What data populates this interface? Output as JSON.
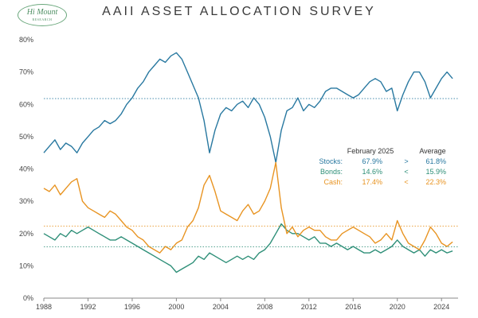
{
  "header": {
    "title": "AAII ASSET ALLOCATION SURVEY",
    "logo_main": "Hi Mount",
    "logo_sub": "RESEARCH"
  },
  "colors": {
    "stocks": "#2878a0",
    "bonds": "#2e8f78",
    "cash": "#e89422",
    "axis": "#888888"
  },
  "chart_data": {
    "type": "line",
    "title": "AAII ASSET ALLOCATION SURVEY",
    "xlabel": "",
    "ylabel": "",
    "xlim": [
      1988,
      2025.5
    ],
    "ylim": [
      0,
      80
    ],
    "x_ticks": [
      "1988",
      "1992",
      "1996",
      "2000",
      "2004",
      "2008",
      "2012",
      "2016",
      "2020",
      "2024"
    ],
    "y_ticks": [
      "0%",
      "10%",
      "20%",
      "30%",
      "40%",
      "50%",
      "60%",
      "70%",
      "80%"
    ],
    "grid": false,
    "series": [
      {
        "name": "Stocks",
        "color": "#2878a0",
        "average": 61.8,
        "points": [
          [
            1988,
            45
          ],
          [
            1988.5,
            47
          ],
          [
            1989,
            49
          ],
          [
            1989.5,
            46
          ],
          [
            1990,
            48
          ],
          [
            1990.5,
            47
          ],
          [
            1991,
            45
          ],
          [
            1991.5,
            48
          ],
          [
            1992,
            50
          ],
          [
            1992.5,
            52
          ],
          [
            1993,
            53
          ],
          [
            1993.5,
            55
          ],
          [
            1994,
            54
          ],
          [
            1994.5,
            55
          ],
          [
            1995,
            57
          ],
          [
            1995.5,
            60
          ],
          [
            1996,
            62
          ],
          [
            1996.5,
            65
          ],
          [
            1997,
            67
          ],
          [
            1997.5,
            70
          ],
          [
            1998,
            72
          ],
          [
            1998.5,
            74
          ],
          [
            1999,
            73
          ],
          [
            1999.5,
            75
          ],
          [
            2000,
            76
          ],
          [
            2000.5,
            74
          ],
          [
            2001,
            70
          ],
          [
            2001.5,
            66
          ],
          [
            2002,
            62
          ],
          [
            2002.5,
            55
          ],
          [
            2003,
            45
          ],
          [
            2003.5,
            52
          ],
          [
            2004,
            57
          ],
          [
            2004.5,
            59
          ],
          [
            2005,
            58
          ],
          [
            2005.5,
            60
          ],
          [
            2006,
            61
          ],
          [
            2006.5,
            59
          ],
          [
            2007,
            62
          ],
          [
            2007.5,
            60
          ],
          [
            2008,
            56
          ],
          [
            2008.5,
            50
          ],
          [
            2009,
            42
          ],
          [
            2009.5,
            52
          ],
          [
            2010,
            58
          ],
          [
            2010.5,
            59
          ],
          [
            2011,
            62
          ],
          [
            2011.5,
            58
          ],
          [
            2012,
            60
          ],
          [
            2012.5,
            59
          ],
          [
            2013,
            61
          ],
          [
            2013.5,
            64
          ],
          [
            2014,
            65
          ],
          [
            2014.5,
            65
          ],
          [
            2015,
            64
          ],
          [
            2015.5,
            63
          ],
          [
            2016,
            62
          ],
          [
            2016.5,
            63
          ],
          [
            2017,
            65
          ],
          [
            2017.5,
            67
          ],
          [
            2018,
            68
          ],
          [
            2018.5,
            67
          ],
          [
            2019,
            64
          ],
          [
            2019.5,
            65
          ],
          [
            2020,
            58
          ],
          [
            2020.5,
            63
          ],
          [
            2021,
            67
          ],
          [
            2021.5,
            70
          ],
          [
            2022,
            70
          ],
          [
            2022.5,
            67
          ],
          [
            2023,
            62
          ],
          [
            2023.5,
            65
          ],
          [
            2024,
            68
          ],
          [
            2024.5,
            70
          ],
          [
            2025,
            68
          ]
        ]
      },
      {
        "name": "Bonds",
        "color": "#2e8f78",
        "average": 15.9,
        "points": [
          [
            1988,
            20
          ],
          [
            1988.5,
            19
          ],
          [
            1989,
            18
          ],
          [
            1989.5,
            20
          ],
          [
            1990,
            19
          ],
          [
            1990.5,
            21
          ],
          [
            1991,
            20
          ],
          [
            1991.5,
            21
          ],
          [
            1992,
            22
          ],
          [
            1992.5,
            21
          ],
          [
            1993,
            20
          ],
          [
            1993.5,
            19
          ],
          [
            1994,
            18
          ],
          [
            1994.5,
            18
          ],
          [
            1995,
            19
          ],
          [
            1995.5,
            18
          ],
          [
            1996,
            17
          ],
          [
            1996.5,
            16
          ],
          [
            1997,
            15
          ],
          [
            1997.5,
            14
          ],
          [
            1998,
            13
          ],
          [
            1998.5,
            12
          ],
          [
            1999,
            11
          ],
          [
            1999.5,
            10
          ],
          [
            2000,
            8
          ],
          [
            2000.5,
            9
          ],
          [
            2001,
            10
          ],
          [
            2001.5,
            11
          ],
          [
            2002,
            13
          ],
          [
            2002.5,
            12
          ],
          [
            2003,
            14
          ],
          [
            2003.5,
            13
          ],
          [
            2004,
            12
          ],
          [
            2004.5,
            11
          ],
          [
            2005,
            12
          ],
          [
            2005.5,
            13
          ],
          [
            2006,
            12
          ],
          [
            2006.5,
            13
          ],
          [
            2007,
            12
          ],
          [
            2007.5,
            14
          ],
          [
            2008,
            15
          ],
          [
            2008.5,
            17
          ],
          [
            2009,
            20
          ],
          [
            2009.5,
            23
          ],
          [
            2010,
            21
          ],
          [
            2010.5,
            20
          ],
          [
            2011,
            20
          ],
          [
            2011.5,
            19
          ],
          [
            2012,
            18
          ],
          [
            2012.5,
            19
          ],
          [
            2013,
            17
          ],
          [
            2013.5,
            17
          ],
          [
            2014,
            16
          ],
          [
            2014.5,
            17
          ],
          [
            2015,
            16
          ],
          [
            2015.5,
            15
          ],
          [
            2016,
            16
          ],
          [
            2016.5,
            15
          ],
          [
            2017,
            14
          ],
          [
            2017.5,
            14
          ],
          [
            2018,
            15
          ],
          [
            2018.5,
            14
          ],
          [
            2019,
            15
          ],
          [
            2019.5,
            16
          ],
          [
            2020,
            18
          ],
          [
            2020.5,
            16
          ],
          [
            2021,
            15
          ],
          [
            2021.5,
            14
          ],
          [
            2022,
            15
          ],
          [
            2022.5,
            13
          ],
          [
            2023,
            15
          ],
          [
            2023.5,
            14
          ],
          [
            2024,
            15
          ],
          [
            2024.5,
            14
          ],
          [
            2025,
            14.6
          ]
        ]
      },
      {
        "name": "Cash",
        "color": "#e89422",
        "average": 22.3,
        "points": [
          [
            1988,
            34
          ],
          [
            1988.5,
            33
          ],
          [
            1989,
            35
          ],
          [
            1989.5,
            32
          ],
          [
            1990,
            34
          ],
          [
            1990.5,
            36
          ],
          [
            1991,
            37
          ],
          [
            1991.5,
            30
          ],
          [
            1992,
            28
          ],
          [
            1992.5,
            27
          ],
          [
            1993,
            26
          ],
          [
            1993.5,
            25
          ],
          [
            1994,
            27
          ],
          [
            1994.5,
            26
          ],
          [
            1995,
            24
          ],
          [
            1995.5,
            22
          ],
          [
            1996,
            21
          ],
          [
            1996.5,
            19
          ],
          [
            1997,
            18
          ],
          [
            1997.5,
            16
          ],
          [
            1998,
            15
          ],
          [
            1998.5,
            14
          ],
          [
            1999,
            16
          ],
          [
            1999.5,
            15
          ],
          [
            2000,
            17
          ],
          [
            2000.5,
            18
          ],
          [
            2001,
            22
          ],
          [
            2001.5,
            24
          ],
          [
            2002,
            28
          ],
          [
            2002.5,
            35
          ],
          [
            2003,
            38
          ],
          [
            2003.5,
            33
          ],
          [
            2004,
            27
          ],
          [
            2004.5,
            26
          ],
          [
            2005,
            25
          ],
          [
            2005.5,
            24
          ],
          [
            2006,
            27
          ],
          [
            2006.5,
            29
          ],
          [
            2007,
            26
          ],
          [
            2007.5,
            27
          ],
          [
            2008,
            30
          ],
          [
            2008.5,
            34
          ],
          [
            2009,
            42
          ],
          [
            2009.5,
            28
          ],
          [
            2010,
            20
          ],
          [
            2010.5,
            22
          ],
          [
            2011,
            19
          ],
          [
            2011.5,
            21
          ],
          [
            2012,
            22
          ],
          [
            2012.5,
            21
          ],
          [
            2013,
            21
          ],
          [
            2013.5,
            19
          ],
          [
            2014,
            18
          ],
          [
            2014.5,
            18
          ],
          [
            2015,
            20
          ],
          [
            2015.5,
            21
          ],
          [
            2016,
            22
          ],
          [
            2016.5,
            21
          ],
          [
            2017,
            20
          ],
          [
            2017.5,
            19
          ],
          [
            2018,
            17
          ],
          [
            2018.5,
            18
          ],
          [
            2019,
            20
          ],
          [
            2019.5,
            18
          ],
          [
            2020,
            24
          ],
          [
            2020.5,
            20
          ],
          [
            2021,
            17
          ],
          [
            2021.5,
            16
          ],
          [
            2022,
            15
          ],
          [
            2022.5,
            18
          ],
          [
            2023,
            22
          ],
          [
            2023.5,
            20
          ],
          [
            2024,
            17
          ],
          [
            2024.5,
            16
          ],
          [
            2025,
            17.4
          ]
        ]
      }
    ]
  },
  "table": {
    "header_current": "February 2025",
    "header_average": "Average",
    "rows": [
      {
        "label": "Stocks:",
        "current": "67.9%",
        "cmp": ">",
        "average": "61.8%",
        "color": "#2878a0"
      },
      {
        "label": "Bonds:",
        "current": "14.6%",
        "cmp": "<",
        "average": "15.9%",
        "color": "#2e8f78"
      },
      {
        "label": "Cash:",
        "current": "17.4%",
        "cmp": "<",
        "average": "22.3%",
        "color": "#e89422"
      }
    ]
  }
}
